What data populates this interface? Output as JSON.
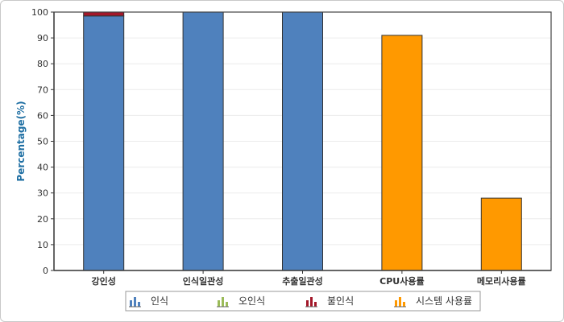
{
  "chart_data": {
    "type": "bar",
    "stacked": true,
    "ylabel": "Percentage(%)",
    "ylim": [
      0,
      100
    ],
    "yticks": [
      0,
      10,
      20,
      30,
      40,
      50,
      60,
      70,
      80,
      90,
      100
    ],
    "categories": [
      "강인성",
      "인식일관성",
      "추출일관성",
      "CPU사용률",
      "메모리사용률"
    ],
    "series": [
      {
        "name": "인식",
        "color": "#4f81bd",
        "values": [
          98.5,
          100,
          100,
          0,
          0
        ]
      },
      {
        "name": "오인식",
        "color": "#9bbb59",
        "values": [
          0,
          0,
          0,
          0,
          0
        ]
      },
      {
        "name": "불인식",
        "color": "#a3182a",
        "values": [
          1.5,
          0,
          0,
          0,
          0
        ]
      },
      {
        "name": "시스템 사용률",
        "color": "#ff9900",
        "values": [
          0,
          0,
          0,
          91,
          28
        ]
      }
    ],
    "grid": true,
    "legend_position": "bottom"
  }
}
